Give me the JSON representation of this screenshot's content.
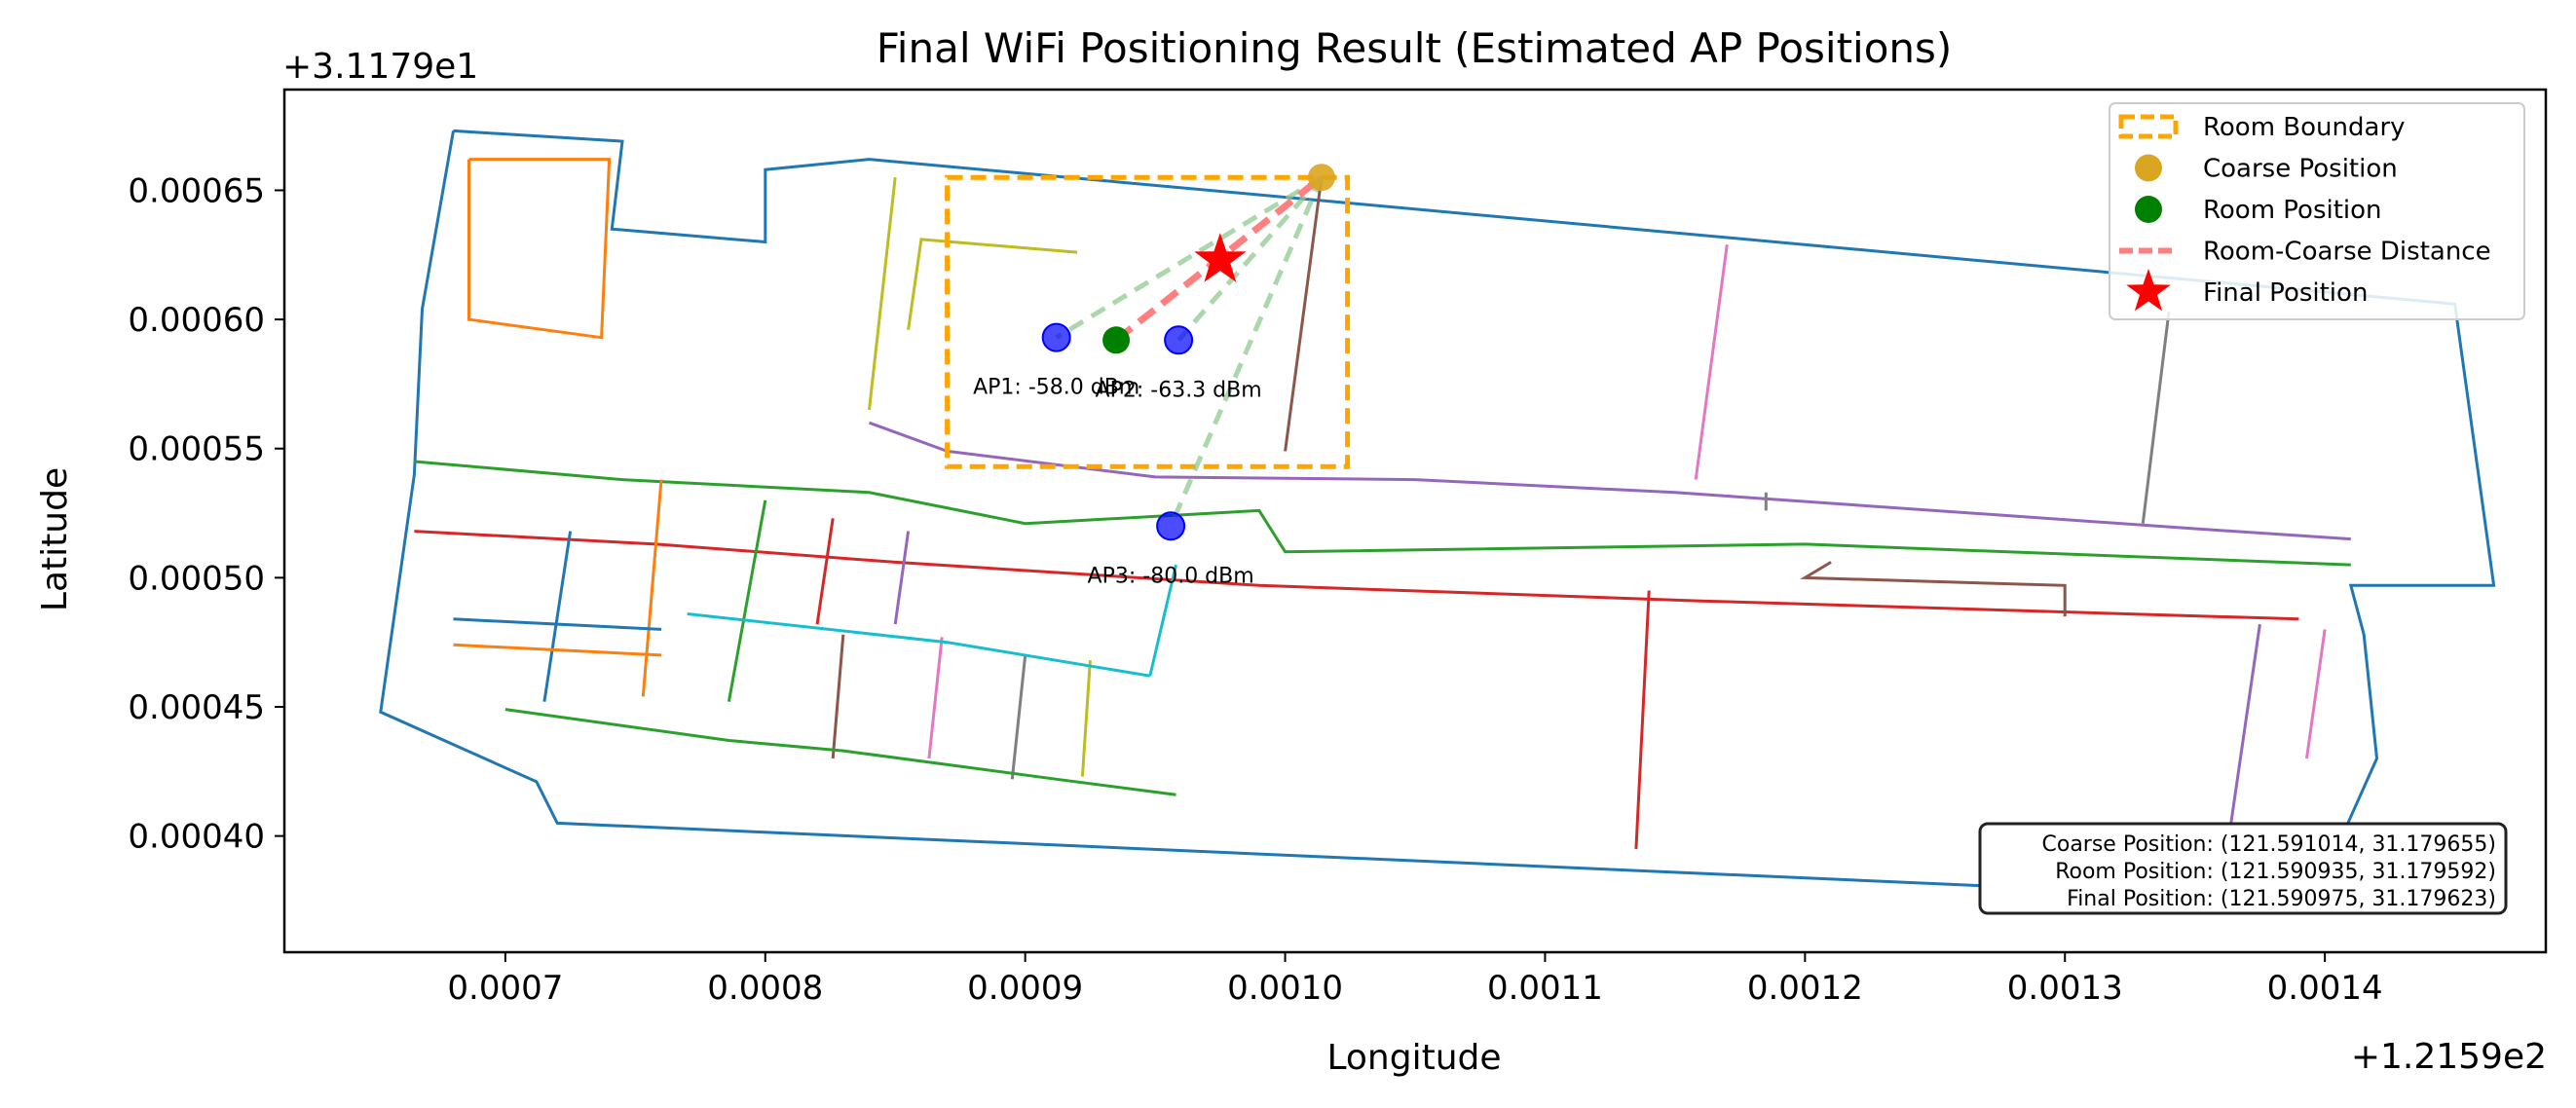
{
  "chart_data": {
    "type": "scatter",
    "title": "Final WiFi Positioning Result (Estimated AP Positions)",
    "xlabel": "Longitude",
    "ylabel": "Latitude",
    "x_offset_label": "+1.2159e2",
    "y_offset_label": "+3.1179e1",
    "xlim": [
      0.000615,
      0.001485
    ],
    "ylim": [
      0.000355,
      0.000689
    ],
    "x_ticks": [
      {
        "value": 0.0007,
        "label": "0.0007"
      },
      {
        "value": 0.0008,
        "label": "0.0008"
      },
      {
        "value": 0.0009,
        "label": "0.0009"
      },
      {
        "value": 0.001,
        "label": "0.0010"
      },
      {
        "value": 0.0011,
        "label": "0.0011"
      },
      {
        "value": 0.0012,
        "label": "0.0012"
      },
      {
        "value": 0.0013,
        "label": "0.0013"
      },
      {
        "value": 0.0014,
        "label": "0.0014"
      }
    ],
    "y_ticks": [
      {
        "value": 0.0004,
        "label": "0.00040"
      },
      {
        "value": 0.00045,
        "label": "0.00045"
      },
      {
        "value": 0.0005,
        "label": "0.00050"
      },
      {
        "value": 0.00055,
        "label": "0.00055"
      },
      {
        "value": 0.0006,
        "label": "0.00060"
      },
      {
        "value": 0.00065,
        "label": "0.00065"
      }
    ],
    "grid": false,
    "legend_position": "upper right",
    "legend": [
      {
        "label": "Room Boundary",
        "kind": "dashed-box",
        "color": "#FFA500"
      },
      {
        "label": "Coarse Position",
        "kind": "circle",
        "color": "#DAA520"
      },
      {
        "label": "Room Position",
        "kind": "circle",
        "color": "#008000"
      },
      {
        "label": "Room-Coarse Distance",
        "kind": "dashed-line",
        "color": "#FF7F7F"
      },
      {
        "label": "Final Position",
        "kind": "star",
        "color": "#FF0000"
      }
    ],
    "room_boundary": {
      "x": [
        0.00087,
        0.001024
      ],
      "y": [
        0.000543,
        0.000655
      ],
      "color": "#FFA500"
    },
    "coarse_position": {
      "x": 0.001014,
      "y": 0.000655,
      "color": "#DAA520"
    },
    "room_position": {
      "x": 0.000935,
      "y": 0.000592,
      "color": "#008000"
    },
    "final_position": {
      "x": 0.000975,
      "y": 0.000623,
      "color": "#FF0000"
    },
    "access_points": [
      {
        "name": "AP1",
        "x": 0.000912,
        "y": 0.000593,
        "label": "AP1: -58.0 dBm",
        "color": "#0000FF"
      },
      {
        "name": "AP2",
        "x": 0.000959,
        "y": 0.000592,
        "label": "AP2: -63.3 dBm",
        "color": "#0000FF"
      },
      {
        "name": "AP3",
        "x": 0.000956,
        "y": 0.00052,
        "label": "AP3: -80.0 dBm",
        "color": "#0000FF"
      }
    ],
    "ap_link_color": "#90C990",
    "info_box": [
      "Coarse Position: (121.591014, 31.179655)",
      "Room Position: (121.590935, 31.179592)",
      "Final Position: (121.590975, 31.179623)"
    ],
    "floorplan_colors": [
      "#1f77b4",
      "#ff7f0e",
      "#2ca02c",
      "#d62728",
      "#9467bd",
      "#8c564b",
      "#e377c2",
      "#7f7f7f",
      "#bcbd22",
      "#17becf"
    ],
    "floorplan": [
      [
        [
          0.00068,
          0.000673
        ],
        [
          0.000745,
          0.000669
        ],
        [
          0.000741,
          0.000635
        ],
        [
          0.0008,
          0.00063
        ],
        [
          0.0008,
          0.000658
        ],
        [
          0.00084,
          0.000662
        ],
        [
          0.00145,
          0.000606
        ],
        [
          0.001465,
          0.000497
        ],
        [
          0.00141,
          0.000497
        ],
        [
          0.001415,
          0.000478
        ],
        [
          0.00142,
          0.00043
        ],
        [
          0.0014,
          0.000385
        ],
        [
          0.00134,
          0.000387
        ],
        [
          0.00133,
          0.000378
        ],
        [
          0.00072,
          0.000405
        ],
        [
          0.000712,
          0.000421
        ],
        [
          0.000652,
          0.000448
        ],
        [
          0.000665,
          0.00054
        ],
        [
          0.000668,
          0.000604
        ],
        [
          0.00068,
          0.000673
        ]
      ],
      [
        [
          0.000686,
          0.000662
        ],
        [
          0.00074,
          0.000662
        ],
        [
          0.000737,
          0.000593
        ],
        [
          0.000686,
          0.0006
        ],
        [
          0.000686,
          0.000662
        ]
      ],
      [
        [
          0.000665,
          0.000545
        ],
        [
          0.000745,
          0.000538
        ],
        [
          0.00084,
          0.000533
        ],
        [
          0.0009,
          0.000521
        ],
        [
          0.00099,
          0.000526
        ],
        [
          0.001,
          0.00051
        ],
        [
          0.0012,
          0.000513
        ],
        [
          0.00141,
          0.000505
        ]
      ],
      [
        [
          0.000665,
          0.000518
        ],
        [
          0.000758,
          0.000513
        ],
        [
          0.00085,
          0.000506
        ],
        [
          0.00099,
          0.000497
        ],
        [
          0.00116,
          0.000491
        ],
        [
          0.00139,
          0.000484
        ]
      ],
      [
        [
          0.00084,
          0.00056
        ],
        [
          0.00087,
          0.000549
        ],
        [
          0.00095,
          0.000539
        ],
        [
          0.00105,
          0.000538
        ],
        [
          0.00115,
          0.000533
        ],
        [
          0.00135,
          0.000519
        ],
        [
          0.00141,
          0.000515
        ]
      ],
      [
        [
          0.001014,
          0.000655
        ],
        [
          0.001,
          0.000549
        ]
      ],
      [
        [
          0.00117,
          0.000629
        ],
        [
          0.001158,
          0.000538
        ]
      ],
      [
        [
          0.00134,
          0.000603
        ],
        [
          0.00133,
          0.000521
        ]
      ],
      [
        [
          0.00085,
          0.000655
        ],
        [
          0.00084,
          0.000565
        ]
      ],
      [
        [
          0.000958,
          0.000505
        ],
        [
          0.000948,
          0.000462
        ]
      ],
      [
        [
          0.000725,
          0.000518
        ],
        [
          0.000715,
          0.000452
        ]
      ],
      [
        [
          0.00076,
          0.000538
        ],
        [
          0.000753,
          0.000454
        ]
      ],
      [
        [
          0.0008,
          0.00053
        ],
        [
          0.000786,
          0.000452
        ]
      ],
      [
        [
          0.000826,
          0.000523
        ],
        [
          0.00082,
          0.000482
        ]
      ],
      [
        [
          0.000855,
          0.000518
        ],
        [
          0.00085,
          0.000482
        ]
      ],
      [
        [
          0.00083,
          0.000478
        ],
        [
          0.000826,
          0.00043
        ]
      ],
      [
        [
          0.000868,
          0.000477
        ],
        [
          0.000863,
          0.00043
        ]
      ],
      [
        [
          0.0009,
          0.00047
        ],
        [
          0.000895,
          0.000422
        ]
      ],
      [
        [
          0.000925,
          0.000468
        ],
        [
          0.000922,
          0.000423
        ]
      ],
      [
        [
          0.00077,
          0.000486
        ],
        [
          0.00087,
          0.000475
        ],
        [
          0.000948,
          0.000462
        ]
      ],
      [
        [
          0.00068,
          0.000484
        ],
        [
          0.00076,
          0.00048
        ]
      ],
      [
        [
          0.00068,
          0.000474
        ],
        [
          0.00076,
          0.00047
        ]
      ],
      [
        [
          0.0007,
          0.000449
        ],
        [
          0.000786,
          0.000437
        ],
        [
          0.00083,
          0.000433
        ],
        [
          0.000912,
          0.000422
        ],
        [
          0.000958,
          0.000416
        ]
      ],
      [
        [
          0.00114,
          0.000495
        ],
        [
          0.001135,
          0.000395
        ]
      ],
      [
        [
          0.001375,
          0.000482
        ],
        [
          0.00136,
          0.000378
        ]
      ],
      [
        [
          0.00121,
          0.000506
        ],
        [
          0.0012,
          0.0005
        ],
        [
          0.0013,
          0.000497
        ],
        [
          0.0013,
          0.000485
        ]
      ],
      [
        [
          0.0014,
          0.00048
        ],
        [
          0.001393,
          0.00043
        ]
      ],
      [
        [
          0.001185,
          0.000533
        ],
        [
          0.001185,
          0.000526
        ]
      ],
      [
        [
          0.00092,
          0.000626
        ],
        [
          0.00086,
          0.000631
        ],
        [
          0.000855,
          0.000596
        ]
      ]
    ]
  }
}
